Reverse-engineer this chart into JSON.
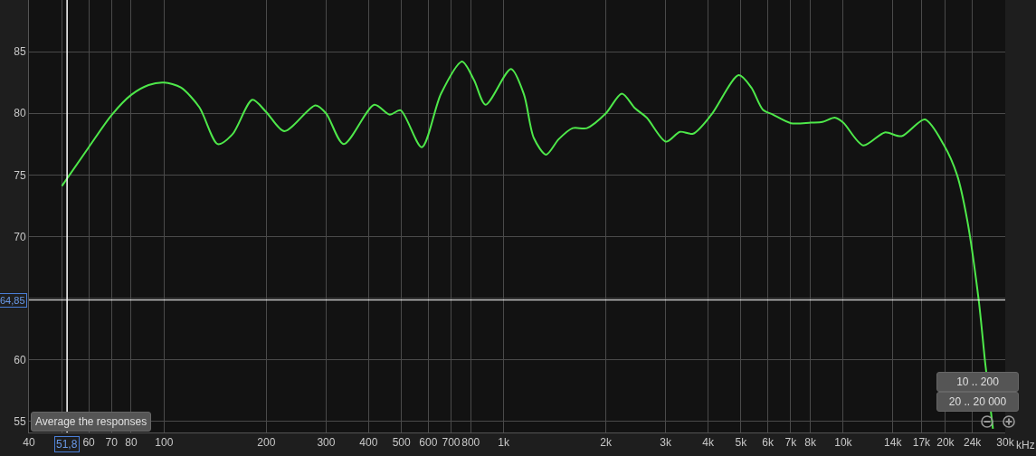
{
  "chart_data": {
    "type": "line",
    "log": "x",
    "grid": true,
    "x": [
      50,
      60,
      70,
      80,
      90,
      100,
      112,
      127,
      144,
      159,
      182,
      200,
      226,
      279,
      300,
      338,
      416,
      462,
      497,
      574,
      654,
      754,
      818,
      885,
      1051,
      1147,
      1227,
      1334,
      1452,
      1597,
      1759,
      2000,
      2229,
      2439,
      2638,
      3006,
      3303,
      3614,
      4092,
      4921,
      5360,
      5798,
      6204,
      7016,
      8032,
      8686,
      9442,
      10000,
      11450,
      13250,
      14860,
      17390,
      19770,
      21640,
      23160,
      25060,
      26210,
      27600
    ],
    "series": [
      {
        "color": "#4ee84a",
        "values": [
          74.1,
          77.25,
          79.85,
          81.5,
          82.3,
          82.5,
          82.1,
          80.5,
          77.5,
          78.3,
          81.1,
          80.1,
          78.55,
          80.65,
          80,
          77.5,
          80.7,
          79.9,
          80.25,
          77.25,
          81.6,
          84.2,
          82.7,
          80.7,
          83.6,
          81.55,
          78,
          76.65,
          77.9,
          78.8,
          78.8,
          80,
          81.6,
          80.4,
          79.65,
          77.7,
          78.5,
          78.35,
          79.9,
          83.1,
          82.1,
          80.3,
          79.9,
          79.2,
          79.25,
          79.3,
          79.65,
          79.25,
          77.4,
          78.45,
          78.15,
          79.5,
          77.45,
          75,
          71.4,
          64.85,
          59.65,
          54.4
        ]
      }
    ],
    "xlim": [
      40,
      30000
    ],
    "ylim": [
      54.1,
      89.2
    ],
    "xticks": [
      40,
      {
        "value": 50,
        "label": null
      },
      60,
      70,
      80,
      100,
      200,
      300,
      400,
      500,
      600,
      700,
      800,
      {
        "value": 1000,
        "label": "1k"
      },
      {
        "value": 2000,
        "label": "2k"
      },
      {
        "value": 3000,
        "label": "3k"
      },
      {
        "value": 4000,
        "label": "4k"
      },
      {
        "value": 5000,
        "label": "5k"
      },
      {
        "value": 6000,
        "label": "6k"
      },
      {
        "value": 7000,
        "label": "7k"
      },
      {
        "value": 8000,
        "label": "8k"
      },
      {
        "value": 10000,
        "label": "10k"
      },
      {
        "value": 14000,
        "label": "14k"
      },
      {
        "value": 17000,
        "label": "17k"
      },
      {
        "value": 20000,
        "label": "20k"
      },
      {
        "value": 24000,
        "label": "24k"
      },
      {
        "value": 30000,
        "label": "30k"
      }
    ],
    "xlabel": "kHz",
    "yticks": [
      55,
      60,
      {
        "value": 65,
        "label": null
      },
      70,
      75,
      80,
      85
    ],
    "ref_lines": [
      {
        "axis": "y",
        "value": 64.85,
        "label": "64,85",
        "color": "#ffffff"
      },
      {
        "axis": "x",
        "value": 51.8,
        "label": "51,8",
        "color": "#ffffff"
      }
    ],
    "annotations": [
      "Average the responses",
      "10 .. 200",
      "20 .. 20 000"
    ]
  }
}
